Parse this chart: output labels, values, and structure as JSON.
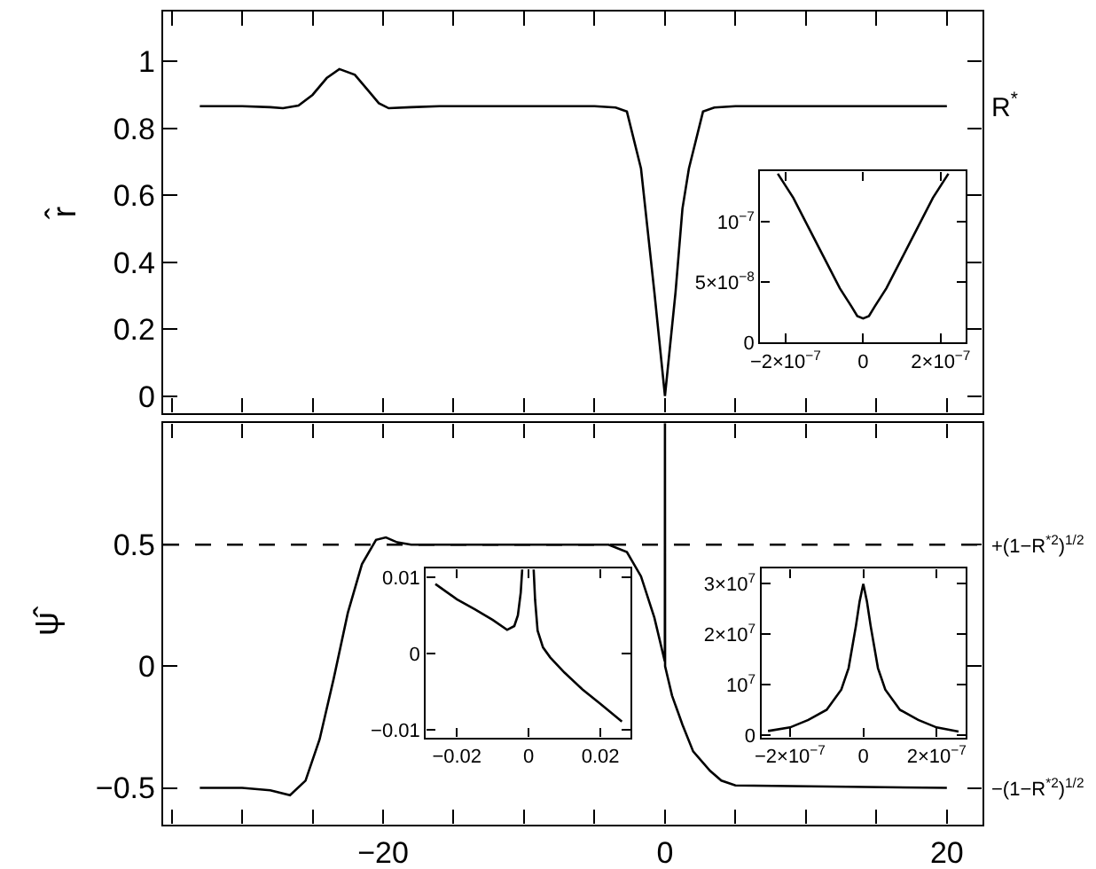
{
  "chart_data": [
    {
      "type": "line",
      "color": "#000000",
      "ylabel": "r̂",
      "tick_labels": "y",
      "marker": "none",
      "line_style": "solid",
      "x": [
        -33,
        -30,
        -28,
        -27.1,
        -26,
        -25,
        -24,
        -23.1,
        -22,
        -21,
        -20.3,
        -19.6,
        -18,
        -16,
        -5,
        -3.5,
        -2.7,
        -1.7,
        -0.75,
        0,
        0.75,
        1.24,
        1.7,
        2.7,
        3.5,
        5,
        20
      ],
      "values": [
        0.866,
        0.866,
        0.863,
        0.86,
        0.868,
        0.9,
        0.95,
        0.977,
        0.96,
        0.91,
        0.875,
        0.86,
        0.863,
        0.866,
        0.866,
        0.862,
        0.85,
        0.68,
        0.31,
        0.0,
        0.31,
        0.56,
        0.68,
        0.85,
        0.862,
        0.866,
        0.866
      ],
      "xlim": [
        -35.6,
        22.5
      ],
      "ylim": [
        -0.05,
        1.15
      ],
      "xticks": [
        {
          "value": -35,
          "label": null
        },
        {
          "value": -30,
          "label": null
        },
        {
          "value": -25,
          "label": null
        },
        {
          "value": -20,
          "label": null
        },
        {
          "value": -15,
          "label": null
        },
        {
          "value": -10,
          "label": null
        },
        {
          "value": -5,
          "label": null
        },
        {
          "value": 0,
          "label": null
        },
        {
          "value": 5,
          "label": null
        },
        {
          "value": 10,
          "label": null
        },
        {
          "value": 15,
          "label": null
        },
        {
          "value": 20,
          "label": null
        }
      ],
      "yticks": [
        0,
        0.2,
        0.4,
        0.6,
        0.8,
        1
      ],
      "annotations": [
        "R$^{*}$"
      ]
    },
    {
      "type": "line",
      "color": "#000000",
      "marker": "none",
      "line_style": "solid",
      "x": [
        -2.2e-07,
        -1.8e-07,
        -1.4e-07,
        -1e-07,
        -6e-08,
        -3e-08,
        -1.5e-08,
        0,
        1.5e-08,
        3e-08,
        6e-08,
        1e-07,
        1.4e-07,
        1.8e-07,
        2.2e-07
      ],
      "values": [
        1.4e-07,
        1.2e-07,
        9.5e-08,
        7e-08,
        4.5e-08,
        3e-08,
        2.2e-08,
        2e-08,
        2.2e-08,
        3e-08,
        4.5e-08,
        7e-08,
        9.5e-08,
        1.2e-07,
        1.4e-07
      ],
      "xlim": [
        -2.65e-07,
        2.65e-07
      ],
      "ylim": [
        0,
        1.42e-07
      ],
      "xticks": [
        {
          "value": -2e-07,
          "label": "−2×10$^{−7}$"
        },
        0,
        {
          "value": 2e-07,
          "label": "2×10$^{−7}$"
        }
      ],
      "yticks": [
        0,
        {
          "value": 5e-08,
          "label": "5×10$^{−8}$"
        },
        {
          "value": 1e-07,
          "label": "10$^{−7}$"
        }
      ]
    },
    {
      "type": "line",
      "color": "#000000",
      "ylabel": "ψ̂",
      "marker": "none",
      "line_style": "solid",
      "x": [
        -33,
        -30,
        -28,
        -26.6,
        -25.5,
        -24.5,
        -23.5,
        -22.5,
        -21.5,
        -20.5,
        -19.8,
        -19,
        -18,
        -17,
        -10,
        -4,
        -2.7,
        -1.7,
        -0.75,
        -0.01,
        0,
        0.01,
        0.5,
        1.24,
        2,
        3.2,
        4,
        5,
        20
      ],
      "values": [
        -0.5,
        -0.5,
        -0.51,
        -0.53,
        -0.47,
        -0.3,
        -0.05,
        0.22,
        0.42,
        0.52,
        0.53,
        0.51,
        0.5,
        0.5,
        0.5,
        0.5,
        0.47,
        0.37,
        0.2,
        0.02,
        1.0,
        0.0,
        -0.12,
        -0.24,
        -0.35,
        -0.43,
        -0.47,
        -0.49,
        -0.5
      ],
      "xlim": [
        -35.6,
        22.5
      ],
      "ylim": [
        -0.65,
        1.0
      ],
      "xticks": [
        {
          "value": -35,
          "label": null
        },
        {
          "value": -30,
          "label": null
        },
        {
          "value": -25,
          "label": null
        },
        {
          "value": -20,
          "label": "−20"
        },
        {
          "value": -15,
          "label": null
        },
        {
          "value": -10,
          "label": null
        },
        {
          "value": -5,
          "label": null
        },
        0,
        {
          "value": 5,
          "label": null
        },
        {
          "value": 10,
          "label": null
        },
        {
          "value": 15,
          "label": null
        },
        20
      ],
      "yticks": [
        {
          "value": -0.5,
          "label": "−0.5"
        },
        0,
        0.5
      ],
      "ref_lines": [
        {
          "axis": "y",
          "value": 0.5,
          "label": "+(1−R$^{*2}$)$^{1/2}$",
          "color": "#000000",
          "line_style": "dashed"
        }
      ],
      "annotations": [
        "−(1−R$^{*2}$)$^{1/2}$"
      ]
    },
    {
      "type": "line",
      "color": "#000000",
      "marker": "none",
      "line_style": "solid",
      "x": [
        -0.026,
        -0.02,
        -0.015,
        -0.01,
        -0.006,
        -0.004,
        -0.003,
        -0.0022,
        -0.0018,
        0,
        0.0014,
        0.0018,
        0.0025,
        0.004,
        0.006,
        0.01,
        0.015,
        0.02,
        0.026
      ],
      "values": [
        0.0091,
        0.0071,
        0.0058,
        0.0044,
        0.0031,
        0.0036,
        0.005,
        0.008,
        0.011,
        null,
        0.011,
        0.007,
        0.003,
        0.0008,
        -0.0005,
        -0.0025,
        -0.0047,
        -0.0066,
        -0.0089
      ],
      "xlim": [
        -0.0286,
        0.0284
      ],
      "ylim": [
        -0.011,
        0.0111
      ],
      "xticks": [
        {
          "value": -0.02,
          "label": "−0.02"
        },
        0,
        0.02
      ],
      "yticks": [
        {
          "value": -0.01,
          "label": "−0.01"
        },
        0,
        0.01
      ]
    },
    {
      "type": "line",
      "color": "#000000",
      "marker": "none",
      "line_style": "solid",
      "x": [
        -2.6e-07,
        -2e-07,
        -1.5e-07,
        -1e-07,
        -6e-08,
        -4e-08,
        -2e-08,
        -1e-08,
        0,
        1e-08,
        2e-08,
        4e-08,
        6e-08,
        1e-07,
        1.5e-07,
        2e-07,
        2.6e-07
      ],
      "values": [
        800000.0,
        1500000.0,
        3000000.0,
        5000000.0,
        9000000.0,
        13300000.0,
        21700000.0,
        26500000.0,
        30000000.0,
        26500000.0,
        21700000.0,
        13300000.0,
        9000000.0,
        5000000.0,
        3000000.0,
        1500000.0,
        700000.0
      ],
      "xlim": [
        -2.78e-07,
        2.8e-07
      ],
      "ylim": [
        -500000.0,
        33000000.0
      ],
      "xticks": [
        {
          "value": -2e-07,
          "label": "−2×10$^{−7}$"
        },
        0,
        {
          "value": 2e-07,
          "label": "2×10$^{−7}$"
        }
      ],
      "yticks": [
        0,
        {
          "value": 10000000.0,
          "label": "10$^{7}$"
        },
        {
          "value": 20000000.0,
          "label": "2×10$^{7}$"
        },
        {
          "value": 30000000.0,
          "label": "3×10$^{7}$"
        }
      ]
    }
  ]
}
